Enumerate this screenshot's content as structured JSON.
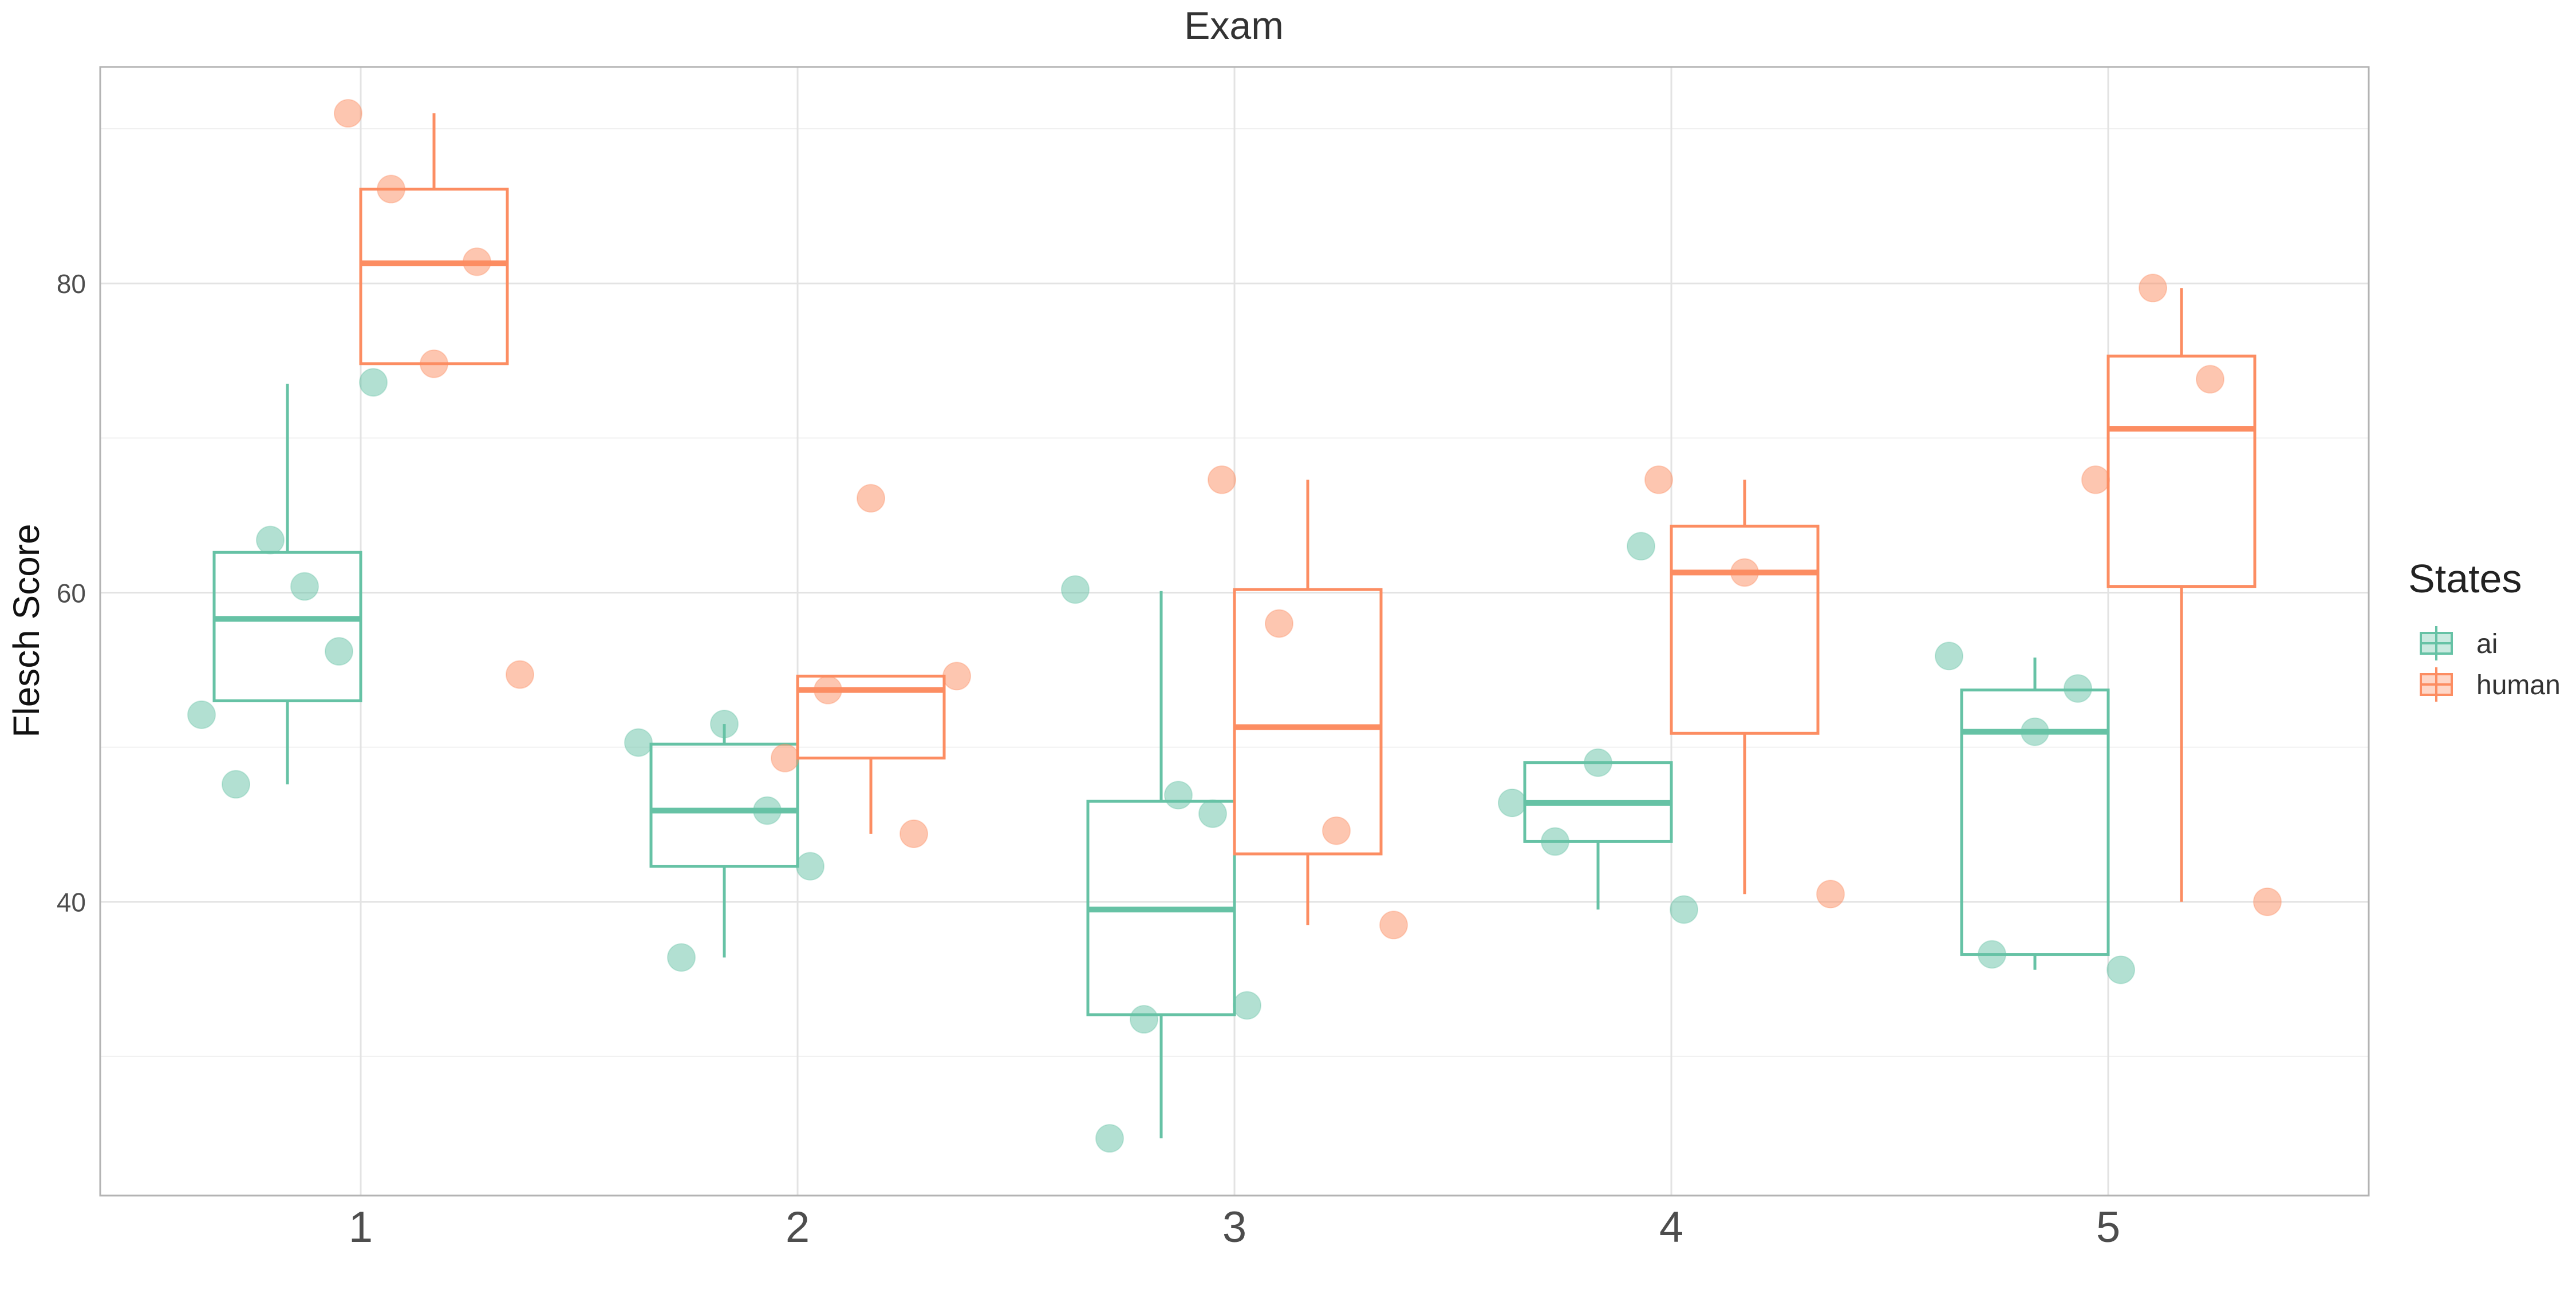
{
  "chart_data": {
    "type": "boxplot",
    "title": "Exam",
    "ylabel": "Flesch Score",
    "xlabel": "",
    "categories": [
      "1",
      "2",
      "3",
      "4",
      "5"
    ],
    "yticks": [
      40,
      60,
      80
    ],
    "ylim": [
      21,
      94
    ],
    "grid": true,
    "legend": {
      "title": "States",
      "placement": "right",
      "entries": [
        "ai",
        "human"
      ]
    },
    "colors": {
      "ai": "#66c2a5",
      "human": "#fc8d62"
    },
    "series": [
      {
        "name": "ai",
        "boxes": [
          {
            "category": "1",
            "q1": 53.0,
            "median": 58.3,
            "q3": 62.6,
            "whisker_low": 47.6,
            "whisker_high": 73.5
          },
          {
            "category": "2",
            "q1": 42.3,
            "median": 45.9,
            "q3": 50.2,
            "whisker_low": 36.4,
            "whisker_high": 51.5
          },
          {
            "category": "3",
            "q1": 32.7,
            "median": 39.5,
            "q3": 46.5,
            "whisker_low": 24.7,
            "whisker_high": 60.1
          },
          {
            "category": "4",
            "q1": 43.9,
            "median": 46.4,
            "q3": 49.0,
            "whisker_low": 39.5,
            "whisker_high": 49.0
          },
          {
            "category": "5",
            "q1": 36.6,
            "median": 51.0,
            "q3": 53.7,
            "whisker_low": 35.6,
            "whisker_high": 55.8
          }
        ],
        "points": [
          {
            "category": "1",
            "values": [
              52.1,
              47.6,
              63.4,
              60.4,
              56.2,
              73.6
            ]
          },
          {
            "category": "2",
            "values": [
              50.3,
              36.4,
              51.5,
              45.9,
              42.3
            ]
          },
          {
            "category": "3",
            "values": [
              60.2,
              24.7,
              32.4,
              46.9,
              45.7,
              33.3
            ]
          },
          {
            "category": "4",
            "values": [
              46.4,
              43.9,
              49.0,
              63.0,
              39.5
            ]
          },
          {
            "category": "5",
            "values": [
              55.9,
              36.6,
              51.0,
              53.8,
              35.6
            ]
          }
        ]
      },
      {
        "name": "human",
        "boxes": [
          {
            "category": "1",
            "q1": 74.8,
            "median": 81.3,
            "q3": 86.1,
            "whisker_low": 74.8,
            "whisker_high": 91.0
          },
          {
            "category": "2",
            "q1": 49.3,
            "median": 53.7,
            "q3": 54.6,
            "whisker_low": 44.4,
            "whisker_high": 54.6
          },
          {
            "category": "3",
            "q1": 43.1,
            "median": 51.3,
            "q3": 60.2,
            "whisker_low": 38.5,
            "whisker_high": 67.3
          },
          {
            "category": "4",
            "q1": 50.9,
            "median": 61.3,
            "q3": 64.3,
            "whisker_low": 40.5,
            "whisker_high": 67.3
          },
          {
            "category": "5",
            "q1": 60.4,
            "median": 70.6,
            "q3": 75.3,
            "whisker_low": 40.0,
            "whisker_high": 79.7
          }
        ],
        "points": [
          {
            "category": "1",
            "values": [
              91.0,
              86.1,
              74.8,
              81.4,
              54.7
            ]
          },
          {
            "category": "2",
            "values": [
              49.3,
              53.7,
              66.1,
              44.4,
              54.6
            ]
          },
          {
            "category": "3",
            "values": [
              67.3,
              58.0,
              44.6,
              38.5
            ]
          },
          {
            "category": "4",
            "values": [
              67.3,
              61.3,
              40.5
            ]
          },
          {
            "category": "5",
            "values": [
              67.3,
              79.7,
              73.8,
              40.0
            ]
          }
        ]
      }
    ]
  }
}
